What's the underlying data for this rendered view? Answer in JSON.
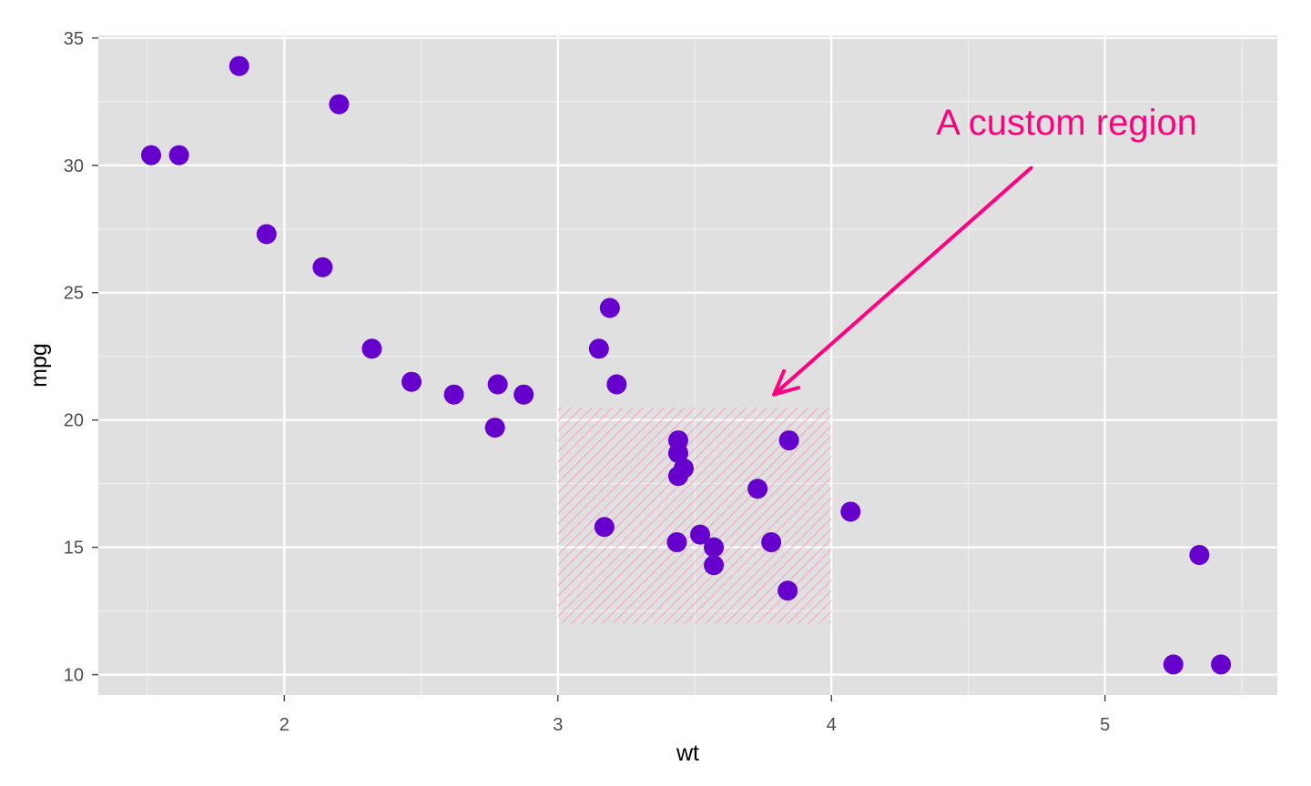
{
  "chart_data": {
    "type": "scatter",
    "xlabel": "wt",
    "ylabel": "mpg",
    "xlim": [
      1.32,
      5.63
    ],
    "ylim": [
      9.2,
      35.1
    ],
    "x_ticks": [
      2,
      3,
      4,
      5
    ],
    "y_ticks": [
      10,
      15,
      20,
      25,
      30,
      35
    ],
    "x_tick_labels": [
      "2",
      "3",
      "4",
      "5"
    ],
    "y_tick_labels": [
      "10",
      "15",
      "20",
      "25",
      "30",
      "35"
    ],
    "x_minor": [
      1.5,
      2.5,
      3.5,
      4.5,
      5.5
    ],
    "y_minor": [
      12.5,
      17.5,
      22.5,
      27.5,
      32.5
    ],
    "grid": true,
    "point_color": "#6600cc",
    "panel_color": "#e0e0e0",
    "accent_color": "#ff0080",
    "points": [
      {
        "x": 2.62,
        "y": 21.0
      },
      {
        "x": 2.875,
        "y": 21.0
      },
      {
        "x": 2.32,
        "y": 22.8
      },
      {
        "x": 3.215,
        "y": 21.4
      },
      {
        "x": 3.44,
        "y": 18.7
      },
      {
        "x": 3.46,
        "y": 18.1
      },
      {
        "x": 3.57,
        "y": 14.3
      },
      {
        "x": 3.19,
        "y": 24.4
      },
      {
        "x": 3.15,
        "y": 22.8
      },
      {
        "x": 3.44,
        "y": 19.2
      },
      {
        "x": 3.44,
        "y": 17.8
      },
      {
        "x": 4.07,
        "y": 16.4
      },
      {
        "x": 3.73,
        "y": 17.3
      },
      {
        "x": 3.78,
        "y": 15.2
      },
      {
        "x": 5.25,
        "y": 10.4
      },
      {
        "x": 5.424,
        "y": 10.4
      },
      {
        "x": 5.345,
        "y": 14.7
      },
      {
        "x": 2.2,
        "y": 32.4
      },
      {
        "x": 1.615,
        "y": 30.4
      },
      {
        "x": 1.835,
        "y": 33.9
      },
      {
        "x": 2.465,
        "y": 21.5
      },
      {
        "x": 3.52,
        "y": 15.5
      },
      {
        "x": 3.435,
        "y": 15.2
      },
      {
        "x": 3.84,
        "y": 13.3
      },
      {
        "x": 3.845,
        "y": 19.2
      },
      {
        "x": 1.935,
        "y": 27.3
      },
      {
        "x": 2.14,
        "y": 26.0
      },
      {
        "x": 1.513,
        "y": 30.4
      },
      {
        "x": 3.17,
        "y": 15.8
      },
      {
        "x": 2.77,
        "y": 19.7
      },
      {
        "x": 3.57,
        "y": 15.0
      },
      {
        "x": 2.78,
        "y": 21.4
      }
    ],
    "region": {
      "xmin": 3.0,
      "xmax": 4.0,
      "ymin": 12.0,
      "ymax": 20.5
    },
    "annotation": {
      "text": "A custom region",
      "text_x": 4.86,
      "text_y": 31.2,
      "arrow_from": {
        "x": 4.73,
        "y": 29.9
      },
      "arrow_to": {
        "x": 3.79,
        "y": 21.0
      }
    }
  }
}
